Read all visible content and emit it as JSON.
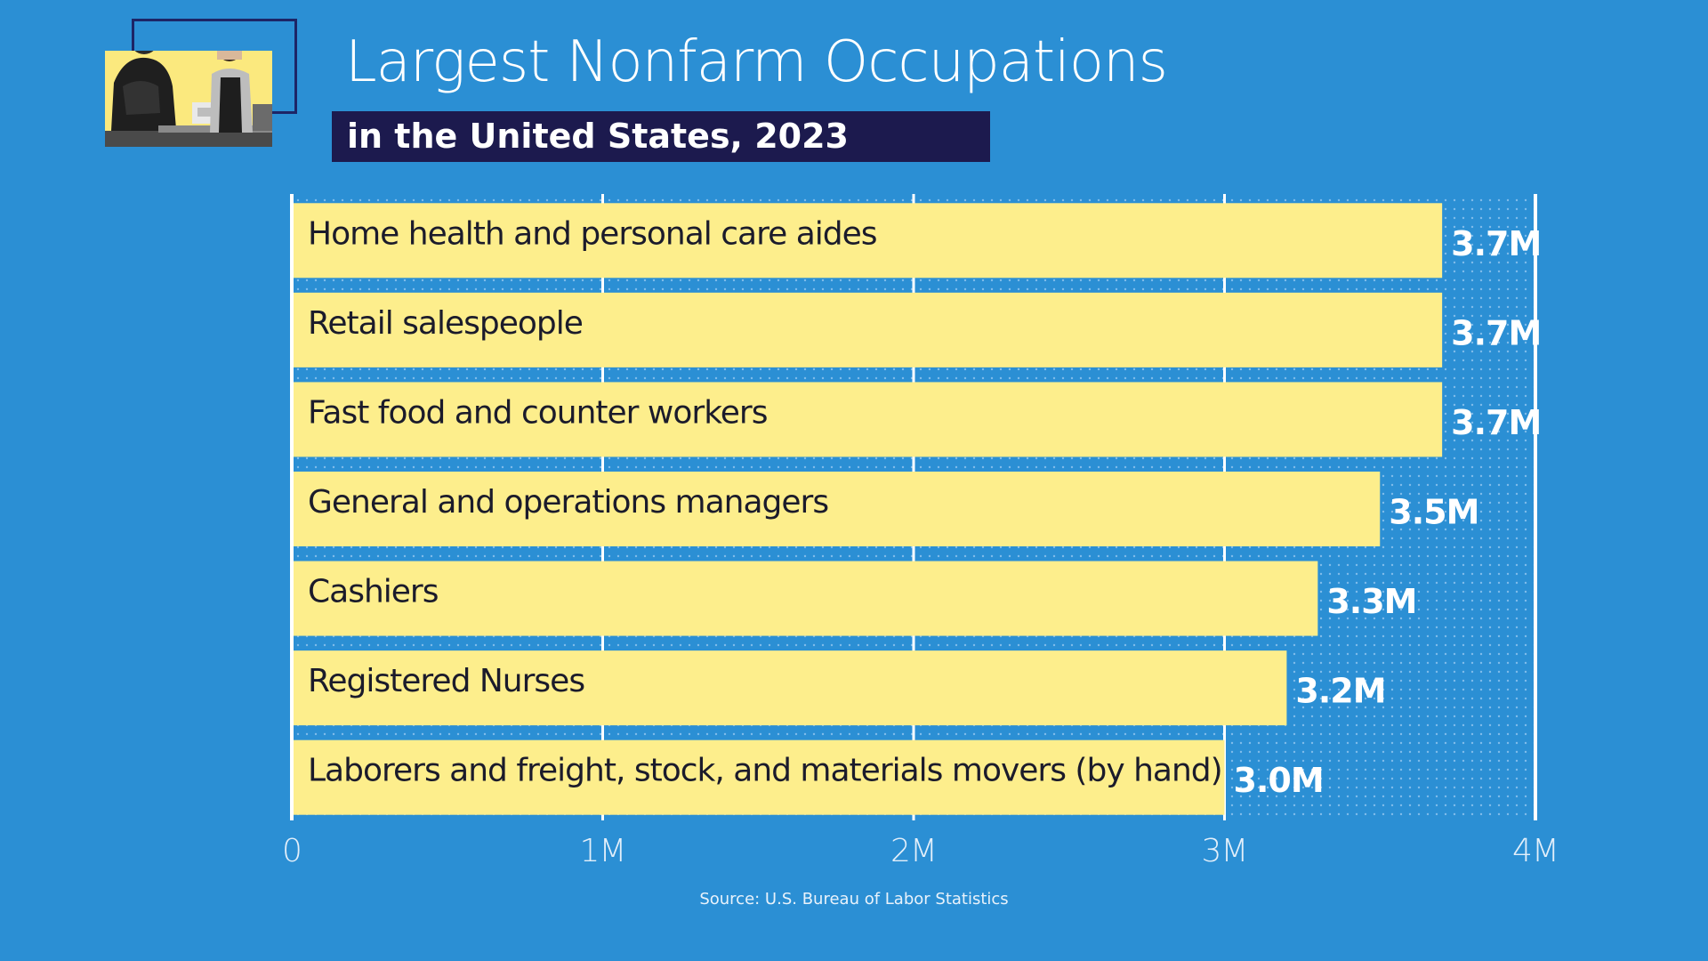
{
  "title": "Largest Nonfarm Occupations",
  "subtitle": "in the United States, 2023",
  "source": "Source: U.S. Bureau of Labor Statistics",
  "photo_icon": "two-men-at-counter-photo",
  "colors": {
    "background": "#2b8fd4",
    "bar": "#fdee8c",
    "subtitle_band": "#1c1a4e",
    "photo_background": "#fbe97e",
    "frame": "#1d2566"
  },
  "chart_data": {
    "type": "bar",
    "orientation": "horizontal",
    "categories": [
      "Home health and personal care aides",
      "Retail salespeople",
      "Fast food and counter workers",
      "General and operations managers",
      "Cashiers",
      "Registered Nurses",
      "Laborers and freight, stock, and materials movers (by hand)"
    ],
    "values": [
      3.7,
      3.7,
      3.7,
      3.5,
      3.3,
      3.2,
      3.0
    ],
    "value_labels": [
      "3.7M",
      "3.7M",
      "3.7M",
      "3.5M",
      "3.3M",
      "3.2M",
      "3.0M"
    ],
    "unit": "millions",
    "xlim": [
      0,
      4
    ],
    "xticks": [
      0,
      1,
      2,
      3,
      4
    ],
    "xtick_labels": [
      "0",
      "1M",
      "2M",
      "3M",
      "4M"
    ],
    "grid": true,
    "legend": "none"
  }
}
